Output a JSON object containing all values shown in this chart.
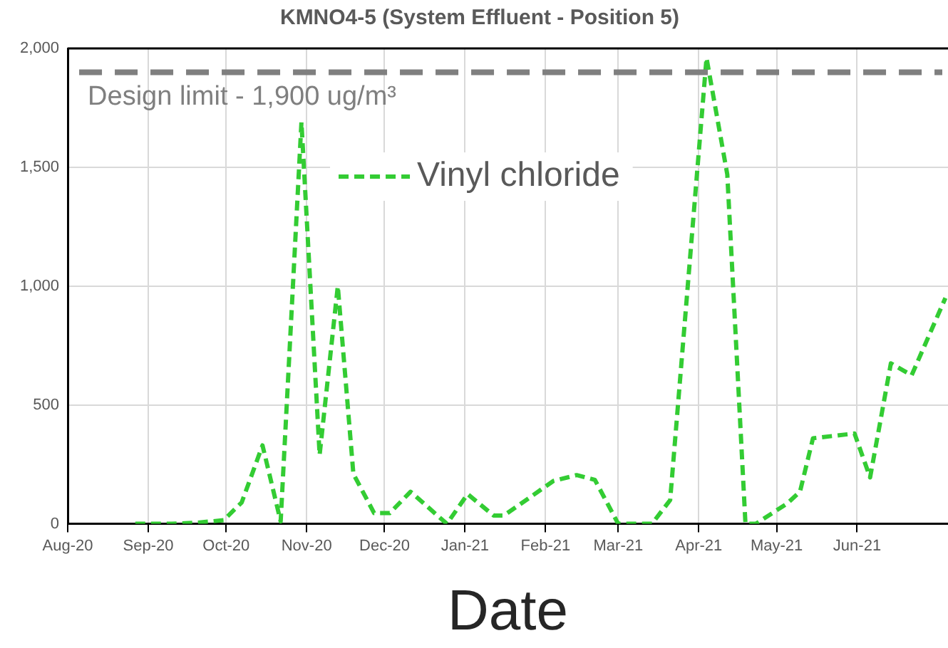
{
  "chart_data": {
    "type": "line",
    "title": "KMNO4-5 (System Effluent - Position 5)",
    "xlabel": "Date",
    "x": [
      "2020-08-27",
      "2020-09-10",
      "2020-09-20",
      "2020-09-30",
      "2020-10-07",
      "2020-10-15",
      "2020-10-22",
      "2020-10-30",
      "2020-11-06",
      "2020-11-13",
      "2020-11-19",
      "2020-11-27",
      "2020-12-03",
      "2020-12-11",
      "2020-12-25",
      "2021-01-02",
      "2021-01-12",
      "2021-01-16",
      "2021-02-04",
      "2021-02-13",
      "2021-02-20",
      "2021-03-01",
      "2021-03-14",
      "2021-03-21",
      "2021-04-04",
      "2021-04-12",
      "2021-04-19",
      "2021-04-23",
      "2021-05-05",
      "2021-05-10",
      "2021-05-15",
      "2021-05-31",
      "2021-06-06",
      "2021-06-14",
      "2021-06-22",
      "2021-07-05"
    ],
    "series": [
      {
        "name": "Vinyl chloride",
        "color": "#33cc33",
        "values": [
          0,
          0,
          5,
          15,
          90,
          330,
          10,
          1690,
          290,
          1000,
          210,
          45,
          45,
          135,
          0,
          125,
          35,
          35,
          180,
          205,
          185,
          0,
          0,
          100,
          1960,
          1470,
          0,
          0,
          85,
          135,
          360,
          380,
          195,
          675,
          625,
          950
        ]
      }
    ],
    "xlim": [
      "2020-08-01",
      "2021-07-06"
    ],
    "xticks": [
      {
        "value": "2020-08-01",
        "label": "Aug-20"
      },
      {
        "value": "2020-09-01",
        "label": "Sep-20"
      },
      {
        "value": "2020-10-01",
        "label": "Oct-20"
      },
      {
        "value": "2020-11-01",
        "label": "Nov-20"
      },
      {
        "value": "2020-12-01",
        "label": "Dec-20"
      },
      {
        "value": "2021-01-01",
        "label": "Jan-21"
      },
      {
        "value": "2021-02-01",
        "label": "Feb-21"
      },
      {
        "value": "2021-03-01",
        "label": "Mar-21"
      },
      {
        "value": "2021-04-01",
        "label": "Apr-21"
      },
      {
        "value": "2021-05-01",
        "label": "May-21"
      },
      {
        "value": "2021-06-01",
        "label": "Jun-21"
      }
    ],
    "ylim": [
      0,
      2000
    ],
    "yticks": [
      0,
      {
        "value": 500,
        "label": "500"
      },
      {
        "value": 1000,
        "label": "1,000"
      },
      {
        "value": 1500,
        "label": "1,500"
      },
      {
        "value": 2000,
        "label": "2,000"
      }
    ],
    "ref_lines": [
      {
        "axis": "y",
        "value": 1900,
        "label": "Design limit - 1,900 ug/m³",
        "color": "#7f7f7f",
        "line_style": "dashed"
      }
    ],
    "grid": true,
    "legend": "top",
    "line_style": "dashed",
    "marker": "none"
  }
}
